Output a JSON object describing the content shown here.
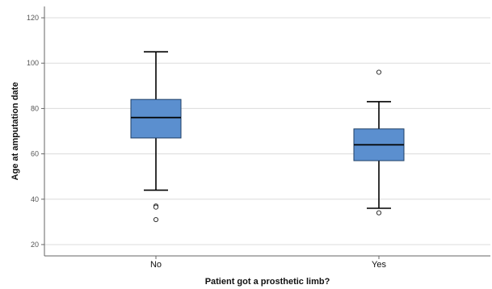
{
  "chart_data": {
    "type": "box",
    "xlabel": "Patient got a prosthetic limb?",
    "ylabel": "Age at amputation date",
    "ylim": [
      15,
      125
    ],
    "yticks": [
      20,
      40,
      60,
      80,
      100,
      120
    ],
    "grid": true,
    "categories": [
      "No",
      "Yes"
    ],
    "box_color": "#5b8fcf",
    "boxes": [
      {
        "category": "No",
        "whisker_low": 44,
        "q1": 67,
        "median": 76,
        "q3": 84,
        "whisker_high": 105,
        "outliers": [
          37,
          36.5,
          31
        ]
      },
      {
        "category": "Yes",
        "whisker_low": 36,
        "q1": 57,
        "median": 64,
        "q3": 71,
        "whisker_high": 83,
        "outliers": [
          96,
          34
        ]
      }
    ]
  }
}
